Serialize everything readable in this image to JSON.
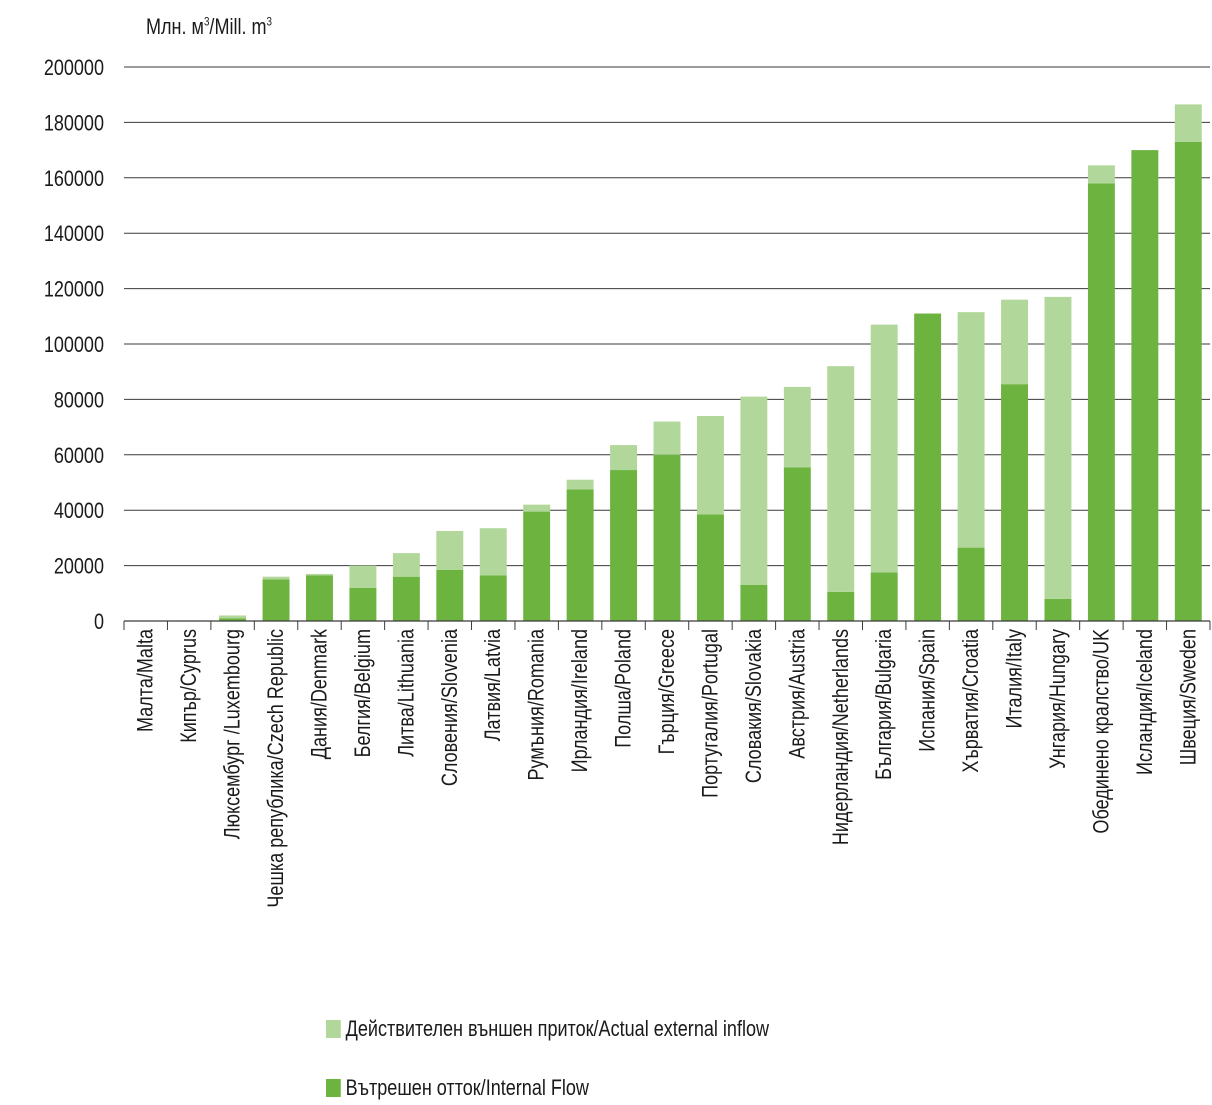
{
  "chart_data": {
    "type": "bar",
    "stacked": true,
    "unit_label_main": "Млн. м",
    "unit_label_sup1": "3",
    "unit_label_mid": "/Mill. m",
    "unit_label_sup2": "3",
    "ylim": [
      0,
      200000
    ],
    "yticks": [
      0,
      20000,
      40000,
      60000,
      80000,
      100000,
      120000,
      140000,
      160000,
      180000,
      200000
    ],
    "grid": true,
    "legend_position": "bottom",
    "categories": [
      "Малта/Malta",
      "Кипър/Cyprus",
      "Люксембург /Luxembourg",
      "Чешка република/Czech Republic",
      "Дания/Denmark",
      "Белгия/Belgium",
      "Литва/Lithuania",
      "Словения/Slovenia",
      "Латвия/Latvia",
      "Румъния/Romania",
      "Ирландия/Ireland",
      "Полша/Poland",
      "Гърция/Greece",
      "Португалия/Portugal",
      "Словакия/Slovakia",
      "Австрия/Austria",
      "Нидерландия/Netherlands",
      "България/Bulgaria",
      "Испания/Spain",
      "Хърватия/Croatia",
      "Италия/Italy",
      "Унгария/Hungary",
      "Обединено кралство/UK",
      "Исландия/Iceland",
      "Швеция/Sweden"
    ],
    "series": [
      {
        "name": "Вътрешен отток/Internal Flow",
        "color": "#6db33f",
        "values": [
          50,
          100,
          1000,
          15000,
          16500,
          12000,
          16000,
          18500,
          16500,
          39500,
          47500,
          54500,
          60000,
          38500,
          13000,
          55500,
          10500,
          17500,
          111000,
          26500,
          85500,
          8000,
          158000,
          170000,
          173000
        ]
      },
      {
        "name": "Действителен външен приток/Actual external inflow",
        "color": "#b1d79a",
        "values": [
          50,
          100,
          1000,
          1000,
          500,
          8000,
          8500,
          14000,
          17000,
          2500,
          3500,
          9000,
          12000,
          35500,
          68000,
          29000,
          81500,
          89500,
          0,
          85000,
          30500,
          109000,
          6500,
          0,
          13500
        ]
      }
    ]
  }
}
